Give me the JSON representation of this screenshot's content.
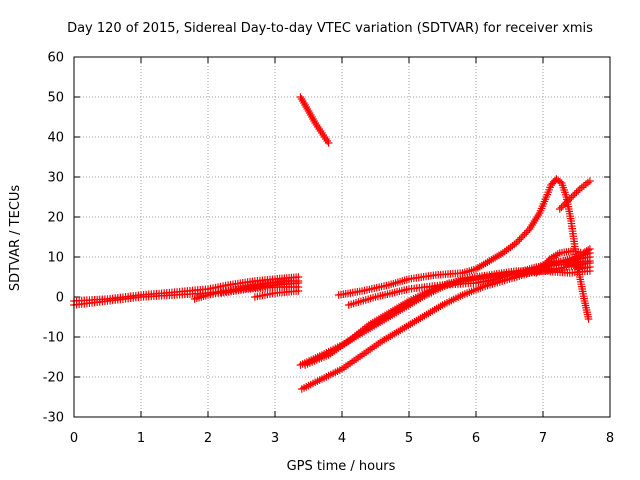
{
  "chart_data": {
    "type": "scatter",
    "title": "Day 120 of 2015, Sidereal Day-to-day VTEC variation (SDTVAR) for receiver xmis",
    "xlabel": "GPS time / hours",
    "ylabel": "SDTVAR / TECUs",
    "xlim": [
      0,
      8
    ],
    "ylim": [
      -30,
      60
    ],
    "xticks": [
      0,
      1,
      2,
      3,
      4,
      5,
      6,
      7,
      8
    ],
    "yticks": [
      -30,
      -20,
      -10,
      0,
      10,
      20,
      30,
      40,
      50,
      60
    ],
    "grid": true,
    "marker": "plus",
    "color": "#ff0000",
    "series": [
      {
        "points": [
          [
            0.0,
            -2.0
          ],
          [
            0.5,
            -1.0
          ],
          [
            1.0,
            0.0
          ],
          [
            1.5,
            0.5
          ],
          [
            2.0,
            1.0
          ],
          [
            2.5,
            2.0
          ],
          [
            3.0,
            3.0
          ],
          [
            3.35,
            3.5
          ]
        ]
      },
      {
        "points": [
          [
            0.0,
            -1.0
          ],
          [
            0.5,
            -0.5
          ],
          [
            1.0,
            0.5
          ],
          [
            1.5,
            1.2
          ],
          [
            2.0,
            2.0
          ],
          [
            2.3,
            3.0
          ],
          [
            2.7,
            4.0
          ],
          [
            3.0,
            4.5
          ],
          [
            3.35,
            5.0
          ]
        ]
      },
      {
        "points": [
          [
            1.8,
            -0.5
          ],
          [
            2.0,
            0.5
          ],
          [
            2.3,
            1.5
          ],
          [
            2.6,
            2.5
          ],
          [
            2.9,
            3.5
          ],
          [
            3.2,
            4.0
          ],
          [
            3.35,
            4.0
          ]
        ]
      },
      {
        "points": [
          [
            2.7,
            0.0
          ],
          [
            3.0,
            1.0
          ],
          [
            3.35,
            1.5
          ]
        ]
      },
      {
        "points": [
          [
            2.2,
            1.0
          ],
          [
            2.6,
            2.0
          ],
          [
            3.0,
            2.5
          ],
          [
            3.35,
            2.5
          ]
        ]
      },
      {
        "points": [
          [
            3.38,
            50.0
          ],
          [
            3.5,
            46.5
          ],
          [
            3.6,
            43.5
          ],
          [
            3.7,
            41.0
          ],
          [
            3.8,
            38.5
          ]
        ]
      },
      {
        "points": [
          [
            3.95,
            0.5
          ],
          [
            4.3,
            1.5
          ],
          [
            4.7,
            3.0
          ],
          [
            5.0,
            4.5
          ],
          [
            5.4,
            5.5
          ],
          [
            5.8,
            6.0
          ],
          [
            6.0,
            7.0
          ],
          [
            6.2,
            9.0
          ],
          [
            6.4,
            11.0
          ],
          [
            6.6,
            13.5
          ],
          [
            6.8,
            17.0
          ],
          [
            6.95,
            21.0
          ],
          [
            7.05,
            25.0
          ],
          [
            7.12,
            28.0
          ],
          [
            7.2,
            29.5
          ],
          [
            7.28,
            28.5
          ],
          [
            7.35,
            25.0
          ],
          [
            7.42,
            19.0
          ],
          [
            7.48,
            12.0
          ],
          [
            7.55,
            5.0
          ],
          [
            7.62,
            -1.0
          ],
          [
            7.68,
            -5.5
          ]
        ]
      },
      {
        "points": [
          [
            4.1,
            -2.0
          ],
          [
            4.5,
            0.0
          ],
          [
            5.0,
            2.0
          ],
          [
            5.5,
            3.0
          ],
          [
            6.0,
            3.5
          ],
          [
            6.3,
            4.5
          ],
          [
            6.6,
            6.0
          ],
          [
            6.9,
            7.5
          ],
          [
            7.2,
            8.0
          ],
          [
            7.45,
            8.5
          ],
          [
            7.7,
            9.0
          ]
        ]
      },
      {
        "points": [
          [
            3.38,
            -17.0
          ],
          [
            3.7,
            -14.5
          ],
          [
            4.0,
            -12.0
          ],
          [
            4.3,
            -9.0
          ],
          [
            4.6,
            -6.0
          ],
          [
            4.9,
            -3.0
          ],
          [
            5.2,
            0.0
          ],
          [
            5.5,
            2.5
          ],
          [
            5.8,
            4.5
          ],
          [
            6.2,
            5.5
          ],
          [
            6.6,
            6.5
          ],
          [
            7.0,
            6.5
          ],
          [
            7.4,
            6.0
          ],
          [
            7.7,
            6.5
          ]
        ]
      },
      {
        "points": [
          [
            3.45,
            -17.0
          ],
          [
            3.8,
            -14.5
          ],
          [
            4.1,
            -11.0
          ],
          [
            4.4,
            -7.0
          ],
          [
            4.7,
            -4.0
          ],
          [
            5.0,
            -1.0
          ],
          [
            5.3,
            1.5
          ],
          [
            5.6,
            3.5
          ],
          [
            6.0,
            4.5
          ],
          [
            6.4,
            5.5
          ],
          [
            6.8,
            6.0
          ],
          [
            7.2,
            7.0
          ],
          [
            7.5,
            8.0
          ],
          [
            7.7,
            8.5
          ]
        ]
      },
      {
        "points": [
          [
            3.4,
            -23.0
          ],
          [
            3.7,
            -20.5
          ],
          [
            4.0,
            -18.0
          ],
          [
            4.3,
            -14.5
          ],
          [
            4.6,
            -11.0
          ],
          [
            4.9,
            -8.0
          ],
          [
            5.2,
            -5.0
          ],
          [
            5.5,
            -2.0
          ],
          [
            5.8,
            0.5
          ],
          [
            6.1,
            2.5
          ],
          [
            6.5,
            4.5
          ],
          [
            6.9,
            6.5
          ],
          [
            7.2,
            8.5
          ],
          [
            7.5,
            10.0
          ],
          [
            7.7,
            11.0
          ]
        ]
      },
      {
        "points": [
          [
            6.9,
            6.0
          ],
          [
            7.0,
            7.5
          ],
          [
            7.1,
            9.5
          ],
          [
            7.25,
            11.0
          ],
          [
            7.45,
            11.5
          ],
          [
            7.6,
            11.0
          ],
          [
            7.7,
            12.0
          ]
        ]
      },
      {
        "points": [
          [
            6.6,
            5.5
          ],
          [
            6.8,
            6.5
          ],
          [
            7.0,
            8.0
          ],
          [
            7.2,
            9.0
          ],
          [
            7.4,
            8.5
          ],
          [
            7.55,
            7.0
          ],
          [
            7.7,
            7.5
          ]
        ]
      },
      {
        "points": [
          [
            7.25,
            22.0
          ],
          [
            7.4,
            24.5
          ],
          [
            7.55,
            27.0
          ],
          [
            7.7,
            29.0
          ]
        ]
      },
      {
        "points": [
          [
            7.3,
            9.0
          ],
          [
            7.5,
            9.5
          ],
          [
            7.7,
            10.0
          ]
        ]
      }
    ]
  }
}
